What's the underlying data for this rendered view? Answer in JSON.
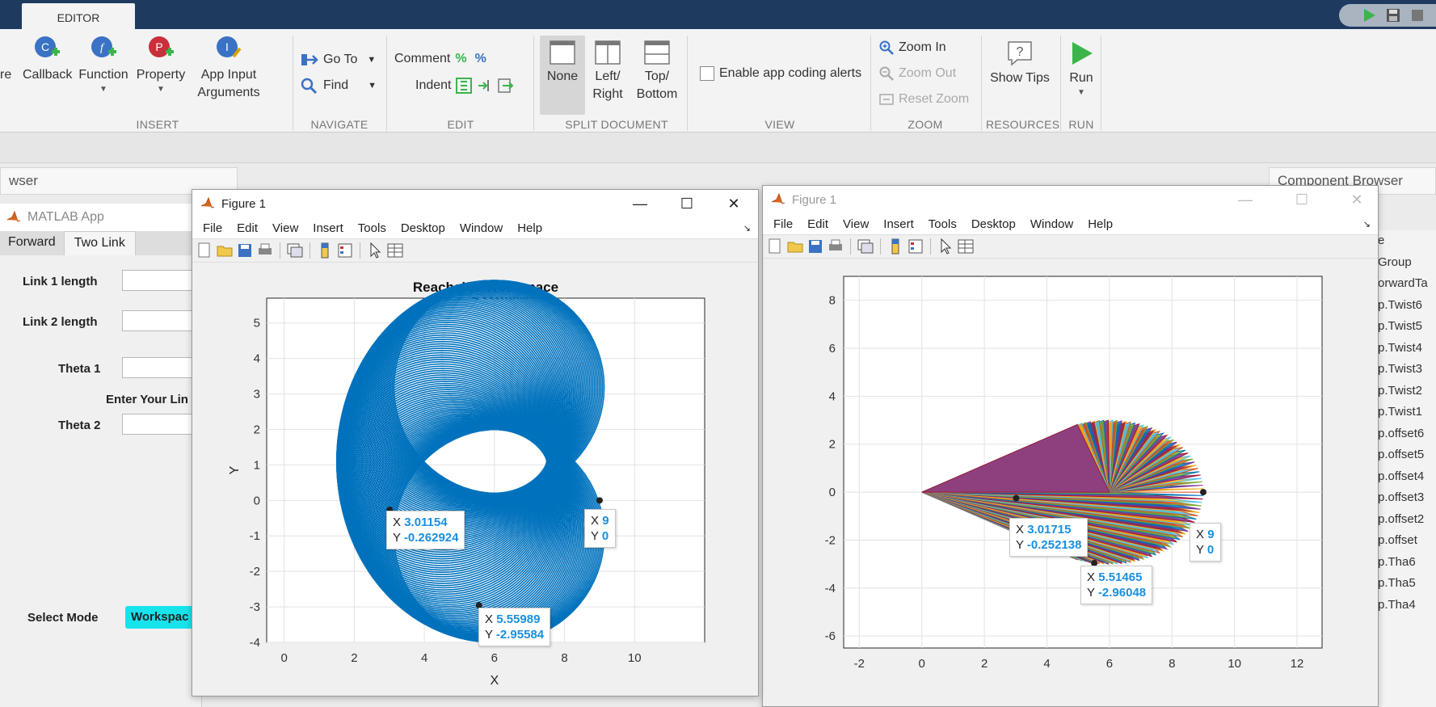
{
  "app": {
    "editor_tab": "EDITOR"
  },
  "ribbon": {
    "partial_left": "re",
    "insert": {
      "callback": "Callback",
      "function": "Function",
      "property": "Property",
      "app_input_l1": "App Input",
      "app_input_l2": "Arguments",
      "label": "INSERT"
    },
    "navigate": {
      "goto": "Go To",
      "find": "Find",
      "label": "NAVIGATE"
    },
    "edit": {
      "comment": "Comment",
      "indent": "Indent",
      "label": "EDIT"
    },
    "split": {
      "none": "None",
      "left_l1": "Left/",
      "left_l2": "Right",
      "top_l1": "Top/",
      "top_l2": "Bottom",
      "label": "SPLIT DOCUMENT"
    },
    "view": {
      "alerts": "Enable app coding alerts",
      "label": "VIEW"
    },
    "zoom": {
      "zoom_in": "Zoom In",
      "zoom_out": "Zoom Out",
      "reset": "Reset Zoom",
      "label": "ZOOM"
    },
    "resources": {
      "tips": "Show Tips",
      "label": "RESOURCES"
    },
    "run": {
      "run": "Run",
      "label": "RUN"
    }
  },
  "browser": {
    "partial_title": "wser"
  },
  "matlab_app": {
    "title": "MATLAB App",
    "tabs": [
      "Forward",
      "Two Link"
    ],
    "link1": "Link 1 length",
    "link2": "Link 2 length",
    "theta1": "Theta 1",
    "enter": "Enter Your Lin",
    "theta2": "Theta 2",
    "select_mode": "Select Mode",
    "mode_value": "Workspac"
  },
  "figure1": {
    "title": "Figure 1",
    "menu": [
      "File",
      "Edit",
      "View",
      "Insert",
      "Tools",
      "Desktop",
      "Window",
      "Help"
    ],
    "plot_title": "Reachable Workspace",
    "xlabel": "X",
    "ylabel": "Y",
    "tips": [
      {
        "xl": "X",
        "xv": "3.01154",
        "yl": "Y",
        "yv": "-0.262924"
      },
      {
        "xl": "X",
        "xv": "9",
        "yl": "Y",
        "yv": "0"
      },
      {
        "xl": "X",
        "xv": "5.55989",
        "yl": "Y",
        "yv": "-2.95584"
      }
    ]
  },
  "figure2": {
    "title": "Figure 1",
    "menu": [
      "File",
      "Edit",
      "View",
      "Insert",
      "Tools",
      "Desktop",
      "Window",
      "Help"
    ],
    "tips": [
      {
        "xl": "X",
        "xv": "3.01715",
        "yl": "Y",
        "yv": "-0.252138"
      },
      {
        "xl": "X",
        "xv": "9",
        "yl": "Y",
        "yv": "0"
      },
      {
        "xl": "X",
        "xv": "5.51465",
        "yl": "Y",
        "yv": "-2.96048"
      }
    ]
  },
  "component_browser": {
    "title": "Component Browser",
    "items": [
      "e",
      "Group",
      "orwardTa",
      "p.Twist6",
      "p.Twist5",
      "p.Twist4",
      "p.Twist3",
      "p.Twist2",
      "p.Twist1",
      "p.offset6",
      "p.offset5",
      "p.offset4",
      "p.offset3",
      "p.offset2",
      "p.offset",
      "p.Tha6",
      "p.Tha5",
      "p.Tha4"
    ]
  },
  "chart_data": [
    {
      "type": "scatter",
      "title": "Reachable Workspace",
      "xlabel": "X",
      "ylabel": "Y",
      "xlim": [
        -0.5,
        12
      ],
      "ylim": [
        -4,
        5.7
      ],
      "xticks": [
        0,
        2,
        4,
        6,
        8,
        10
      ],
      "yticks": [
        -4,
        -3,
        -2,
        -1,
        0,
        1,
        2,
        3,
        4,
        5
      ],
      "grid": true,
      "center": [
        6,
        0
      ],
      "link_lengths": [
        6,
        3
      ],
      "annotations": [
        {
          "x": 3.01154,
          "y": -0.262924
        },
        {
          "x": 9,
          "y": 0
        },
        {
          "x": 5.55989,
          "y": -2.95584
        }
      ]
    },
    {
      "type": "line",
      "title": "",
      "xlabel": "",
      "ylabel": "",
      "xlim": [
        -2.5,
        12.8
      ],
      "ylim": [
        -6.5,
        9
      ],
      "xticks": [
        -2,
        0,
        2,
        4,
        6,
        8,
        10,
        12
      ],
      "yticks": [
        -6,
        -4,
        -2,
        0,
        2,
        4,
        6,
        8
      ],
      "grid": true,
      "annotations": [
        {
          "x": 3.01715,
          "y": -0.252138
        },
        {
          "x": 9,
          "y": 0
        },
        {
          "x": 5.51465,
          "y": -2.96048
        }
      ]
    }
  ]
}
